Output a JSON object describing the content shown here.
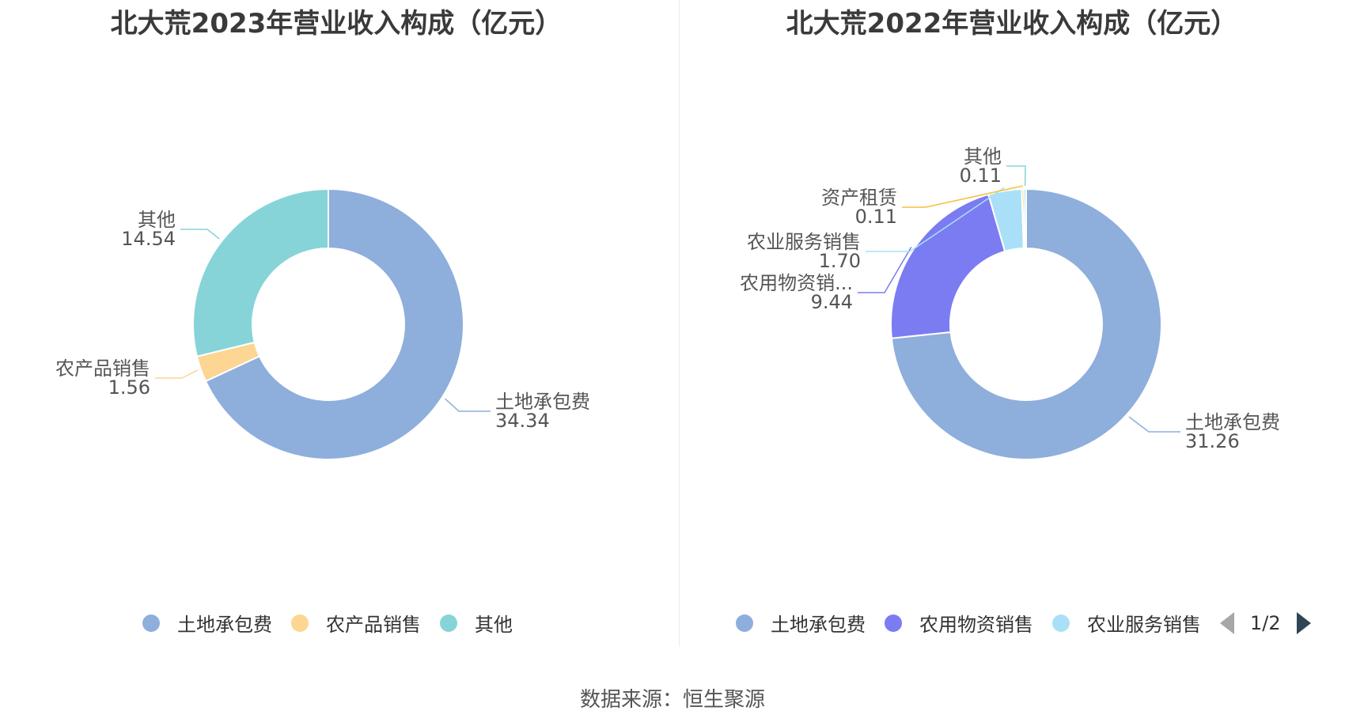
{
  "chart_data": [
    {
      "type": "pie",
      "variant": "donut",
      "title": "北大荒2023年营业收入构成（亿元）",
      "slices": [
        {
          "name": "土地承包费",
          "value": 34.34,
          "label_name": "土地承包费",
          "label_value": "34.34",
          "color": "#8eaedc"
        },
        {
          "name": "农产品销售",
          "value": 1.56,
          "label_name": "农产品销售",
          "label_value": "1.56",
          "color": "#fcd692"
        },
        {
          "name": "其他",
          "value": 14.54,
          "label_name": "其他",
          "label_value": "14.54",
          "color": "#86d4d8"
        }
      ],
      "legend": {
        "placement": "bottom",
        "items": [
          {
            "label": "土地承包费",
            "color": "#8eaedc"
          },
          {
            "label": "农产品销售",
            "color": "#fcd692"
          },
          {
            "label": "其他",
            "color": "#86d4d8"
          }
        ]
      }
    },
    {
      "type": "pie",
      "variant": "donut",
      "title": "北大荒2022年营业收入构成（亿元）",
      "slices": [
        {
          "name": "土地承包费",
          "value": 31.26,
          "label_name": "土地承包费",
          "label_value": "31.26",
          "color": "#8eaedc"
        },
        {
          "name": "农用物资销售",
          "value": 9.44,
          "label_name": "农用物资销...",
          "label_value": "9.44",
          "color": "#7b7cf2"
        },
        {
          "name": "农业服务销售",
          "value": 1.7,
          "label_name": "农业服务销售",
          "label_value": "1.70",
          "color": "#a9e0f7"
        },
        {
          "name": "资产租赁",
          "value": 0.11,
          "label_name": "资产租赁",
          "label_value": "0.11",
          "color": "#f5bf3c"
        },
        {
          "name": "其他",
          "value": 0.11,
          "label_name": "其他",
          "label_value": "0.11",
          "color": "#86d4d8"
        }
      ],
      "legend": {
        "placement": "bottom",
        "items": [
          {
            "label": "土地承包费",
            "color": "#8eaedc"
          },
          {
            "label": "农用物资销售",
            "color": "#7b7cf2"
          },
          {
            "label": "农业服务销售",
            "color": "#a9e0f7"
          }
        ],
        "page_indicator": "1/2"
      }
    }
  ],
  "source": "数据来源：恒生聚源"
}
